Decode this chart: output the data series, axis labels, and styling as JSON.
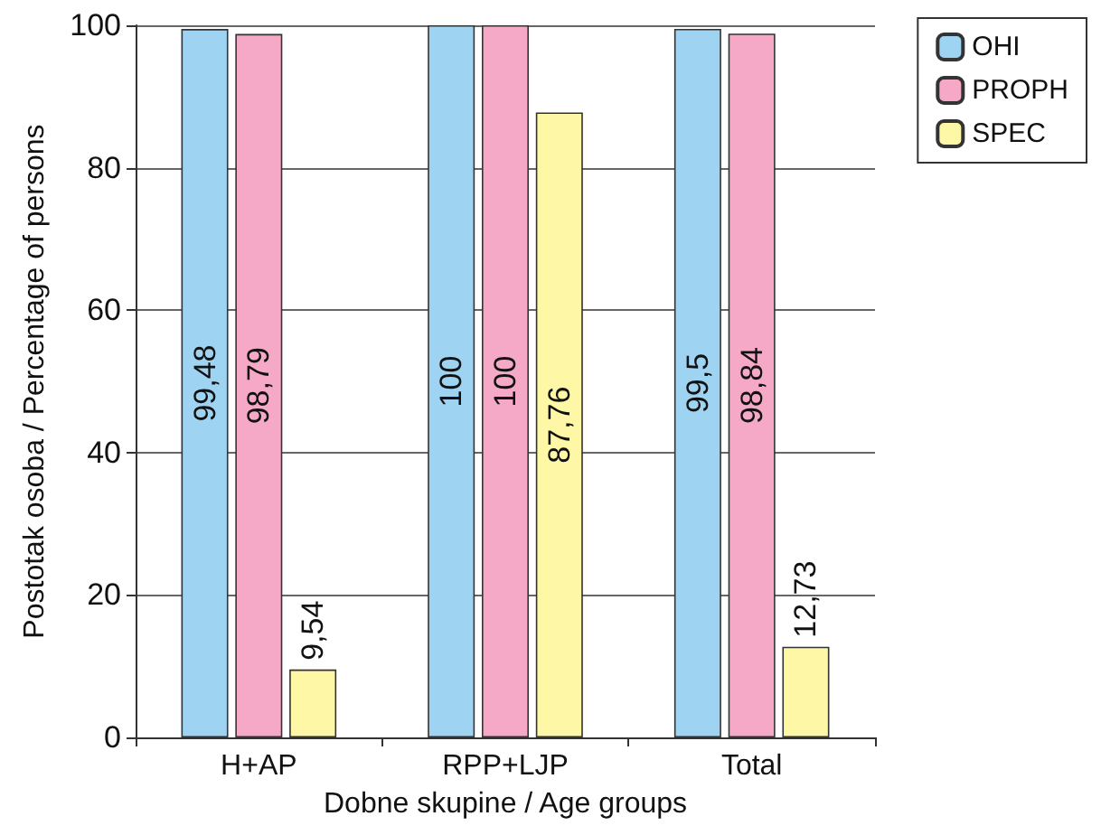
{
  "chart_data": {
    "type": "bar",
    "xlabel": "Dobne skupine / Age groups",
    "ylabel": "Postotak osoba / Percentage of persons",
    "categories": [
      "H+AP",
      "RPP+LJP",
      "Total"
    ],
    "series": [
      {
        "name": "OHI",
        "color": "#9fd3f2",
        "values": [
          99.48,
          100,
          99.5
        ],
        "value_labels": [
          "99,48",
          "100",
          "99,5"
        ]
      },
      {
        "name": "PROPH",
        "color": "#f5a9c6",
        "values": [
          98.79,
          100,
          98.84
        ],
        "value_labels": [
          "98,79",
          "100",
          "98,84"
        ]
      },
      {
        "name": "SPEC",
        "color": "#fdf7a6",
        "values": [
          9.54,
          87.76,
          12.73
        ],
        "value_labels": [
          "9,54",
          "87,76",
          "12,73"
        ]
      }
    ],
    "ylim": [
      0,
      100
    ],
    "yticks": [
      0,
      20,
      40,
      60,
      80,
      100
    ],
    "grid": "y",
    "legend": "top right"
  }
}
